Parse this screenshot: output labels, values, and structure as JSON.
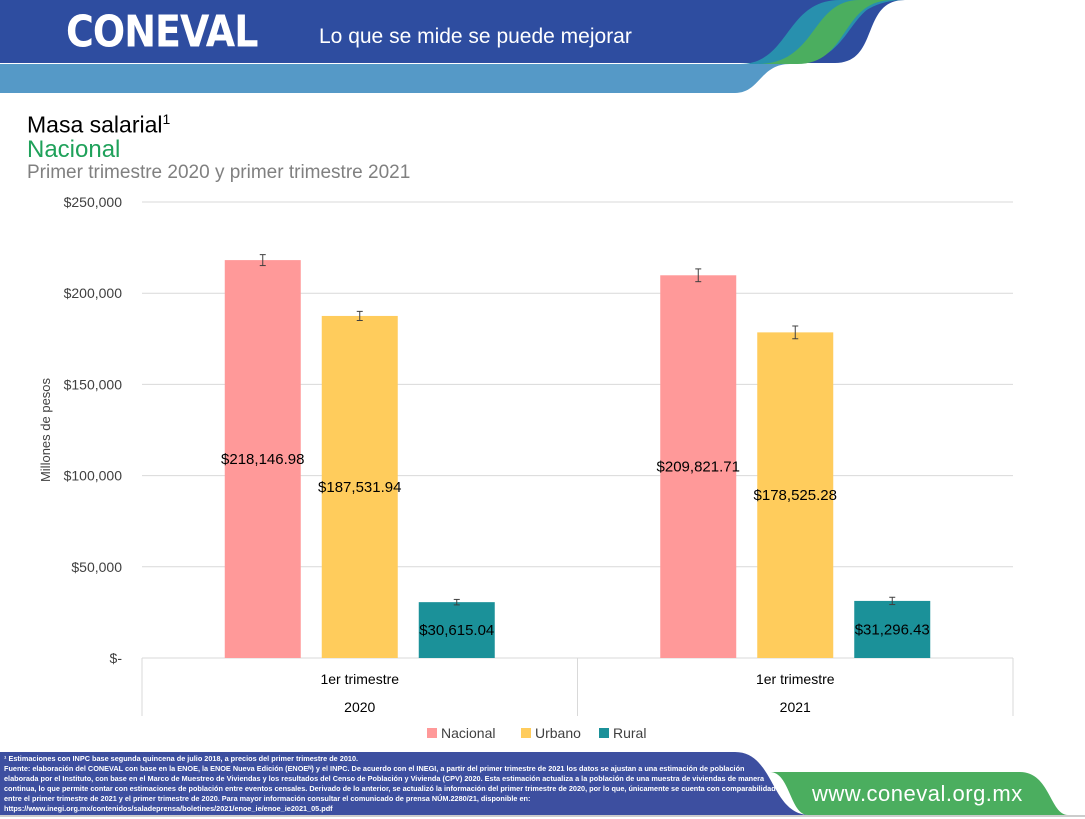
{
  "header": {
    "logo_text": "CONEVAL",
    "tagline": "Lo que se mide se puede mejorar"
  },
  "title": {
    "main": "Masa salarial",
    "superscript": "1",
    "subtitle": "Nacional",
    "period": "Primer trimestre 2020 y primer trimestre 2021"
  },
  "chart_data": {
    "type": "bar",
    "ylabel": "Millones de pesos",
    "ylim": [
      0,
      250000
    ],
    "yticks": [
      {
        "value": 0,
        "label": "$-"
      },
      {
        "value": 50000,
        "label": "$50,000"
      },
      {
        "value": 100000,
        "label": "$100,000"
      },
      {
        "value": 150000,
        "label": "$150,000"
      },
      {
        "value": 200000,
        "label": "$200,000"
      },
      {
        "value": 250000,
        "label": "$250,000"
      }
    ],
    "grid": true,
    "legend_position": "bottom",
    "categories": [
      {
        "sub": "1er trimestre",
        "year": "2020"
      },
      {
        "sub": "1er trimestre",
        "year": "2021"
      }
    ],
    "series": [
      {
        "name": "Nacional",
        "color": "#ff9999",
        "values": [
          218146.98,
          209821.71
        ],
        "labels": [
          "$218,146.98",
          "$209,821.71"
        ],
        "errors": [
          3000,
          3500
        ]
      },
      {
        "name": "Urbano",
        "color": "#ffcc5c",
        "values": [
          187531.94,
          178525.28
        ],
        "labels": [
          "$187,531.94",
          "$178,525.28"
        ],
        "errors": [
          2500,
          3500
        ]
      },
      {
        "name": "Rural",
        "color": "#1b9199",
        "values": [
          30615.04,
          31296.43
        ],
        "labels": [
          "$30,615.04",
          "$31,296.43"
        ],
        "errors": [
          1500,
          2000
        ]
      }
    ]
  },
  "footer": {
    "note1": "¹ Estimaciones con INPC base segunda quincena de julio 2018, a precios del primer trimestre de 2010.",
    "note2": "Fuente: elaboración del CONEVAL con base en la ENOE, la ENOE Nueva Edición (ENOEᴺ) y el INPC. De acuerdo con el INEGI, a partir del primer trimestre de 2021 los datos se ajustan a una estimación de población elaborada por el Instituto, con base en el Marco de Muestreo de Viviendas y los resultados del Censo de Población y Vivienda (CPV) 2020. Esta estimación actualiza a la población de una muestra de viviendas de manera continua, lo que permite contar con estimaciones de población entre eventos censales. Derivado de lo anterior, se actualizó la información del primer trimestre de 2020, por lo que, únicamente se cuenta con comparabilidad entre el primer trimestre de 2021 y el primer trimestre de 2020. Para mayor información consultar el comunicado de prensa NÚM.2280/21, disponible en:",
    "note3": "https://www.inegi.org.mx/contenidos/saladeprensa/boletines/2021/enoe_ie/enoe_ie2021_05.pdf",
    "url": "www.coneval.org.mx"
  }
}
